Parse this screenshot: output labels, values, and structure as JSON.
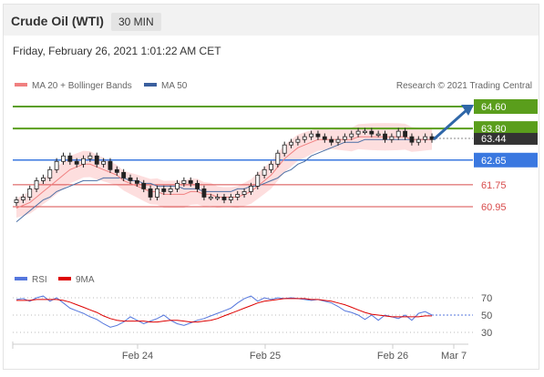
{
  "header": {
    "title": "Crude Oil (WTI)",
    "timeframe": "30 MIN"
  },
  "datetime": "Friday, February 26, 2021 1:01:22 AM CET",
  "legend": {
    "ma20": "MA 20 + Bollinger Bands",
    "ma50": "MA 50",
    "credit": "Research © 2021 Trading Central"
  },
  "rsi_legend": {
    "rsi": "RSI",
    "ma9": "9MA"
  },
  "colors": {
    "resistance": "#5a9e1c",
    "support_blue": "#3a78e0",
    "support_red": "#d84b4b",
    "current": "#333333",
    "ma20": "#f08080",
    "ma50": "#4a6fa5",
    "rsi": "#5577dd",
    "ma9": "#dd0000",
    "candle": "#222222",
    "band": "#fcd6d6"
  },
  "chart_data": [
    {
      "type": "candlestick",
      "title": "Crude Oil (WTI)",
      "timeframe": "30 MIN",
      "x_ticks": [
        "Feb 24",
        "Feb 25",
        "Feb 26",
        "Mar 7"
      ],
      "ylim": [
        59.9,
        65.1
      ],
      "levels": [
        {
          "value": 64.6,
          "label": "64.60",
          "kind": "resistance"
        },
        {
          "value": 63.8,
          "label": "63.80",
          "kind": "resistance"
        },
        {
          "value": 62.65,
          "label": "62.65",
          "kind": "support_blue"
        },
        {
          "value": 61.75,
          "label": "61.75",
          "kind": "support_red"
        },
        {
          "value": 60.95,
          "label": "60.95",
          "kind": "support_red"
        }
      ],
      "current_price": {
        "value": 63.44,
        "label": "63.44"
      },
      "forecast_target": 64.6,
      "close": [
        61.2,
        61.3,
        61.6,
        61.9,
        62.0,
        62.3,
        62.6,
        62.8,
        62.6,
        62.5,
        62.7,
        62.8,
        62.5,
        62.6,
        62.3,
        62.2,
        62.0,
        61.9,
        61.8,
        61.6,
        61.3,
        61.6,
        61.5,
        61.6,
        61.8,
        61.9,
        61.8,
        61.6,
        61.3,
        61.3,
        61.3,
        61.2,
        61.3,
        61.4,
        61.5,
        61.7,
        62.1,
        62.3,
        62.5,
        62.9,
        63.2,
        63.3,
        63.4,
        63.5,
        63.6,
        63.5,
        63.4,
        63.3,
        63.4,
        63.5,
        63.6,
        63.7,
        63.7,
        63.6,
        63.6,
        63.4,
        63.5,
        63.7,
        63.5,
        63.3,
        63.4,
        63.5,
        63.4
      ],
      "ma20": [
        60.9,
        61.0,
        61.1,
        61.3,
        61.5,
        61.7,
        61.9,
        62.1,
        62.3,
        62.4,
        62.5,
        62.5,
        62.4,
        62.3,
        62.2,
        62.1,
        61.9,
        61.8,
        61.7,
        61.6,
        61.5,
        61.5,
        61.4,
        61.4,
        61.4,
        61.4,
        61.5,
        61.5,
        61.4,
        61.4,
        61.3,
        61.3,
        61.3,
        61.3,
        61.4,
        61.5,
        61.7,
        61.9,
        62.1,
        62.4,
        62.7,
        62.9,
        63.1,
        63.2,
        63.3,
        63.4,
        63.4,
        63.4,
        63.4,
        63.4,
        63.4,
        63.5,
        63.5,
        63.5,
        63.5,
        63.5,
        63.5,
        63.5,
        63.5,
        63.4,
        63.4,
        63.4,
        63.4
      ],
      "ma50": [
        60.4,
        60.6,
        60.8,
        61.0,
        61.2,
        61.3,
        61.5,
        61.6,
        61.7,
        61.8,
        61.9,
        61.9,
        61.9,
        62.0,
        62.0,
        62.0,
        62.0,
        61.9,
        61.9,
        61.8,
        61.8,
        61.7,
        61.7,
        61.7,
        61.7,
        61.6,
        61.6,
        61.6,
        61.5,
        61.5,
        61.5,
        61.5,
        61.5,
        61.6,
        61.6,
        61.7,
        61.7,
        61.8,
        61.9,
        62.0,
        62.2,
        62.3,
        62.5,
        62.6,
        62.8,
        62.9,
        63.0,
        63.1,
        63.2,
        63.3,
        63.3,
        63.3,
        63.4,
        63.4,
        63.4,
        63.4,
        63.4,
        63.4,
        63.4,
        63.4,
        63.4,
        63.4,
        63.4
      ]
    },
    {
      "type": "line",
      "title": "RSI",
      "y_ticks": [
        70,
        50,
        30
      ],
      "ylim": [
        20,
        80
      ],
      "series": [
        {
          "name": "RSI",
          "values": [
            68,
            69,
            66,
            70,
            72,
            66,
            70,
            64,
            58,
            55,
            52,
            48,
            45,
            40,
            36,
            38,
            42,
            48,
            44,
            40,
            43,
            46,
            50,
            44,
            40,
            38,
            41,
            44,
            46,
            49,
            52,
            55,
            58,
            64,
            69,
            72,
            66,
            70,
            68,
            70,
            69,
            70,
            69,
            68,
            67,
            68,
            66,
            64,
            60,
            55,
            53,
            50,
            45,
            50,
            44,
            50,
            48,
            46,
            50,
            44,
            52,
            54,
            50
          ]
        },
        {
          "name": "9MA",
          "values": [
            67,
            67,
            67,
            68,
            68,
            68,
            68,
            67,
            65,
            62,
            59,
            56,
            53,
            49,
            46,
            44,
            43,
            43,
            43,
            43,
            42,
            42,
            43,
            44,
            44,
            43,
            42,
            42,
            43,
            44,
            46,
            49,
            52,
            55,
            58,
            61,
            64,
            66,
            67,
            68,
            69,
            69,
            69,
            69,
            68,
            68,
            67,
            66,
            64,
            62,
            59,
            56,
            53,
            51,
            50,
            49,
            48,
            48,
            48,
            48,
            48,
            49,
            49
          ]
        }
      ]
    }
  ]
}
